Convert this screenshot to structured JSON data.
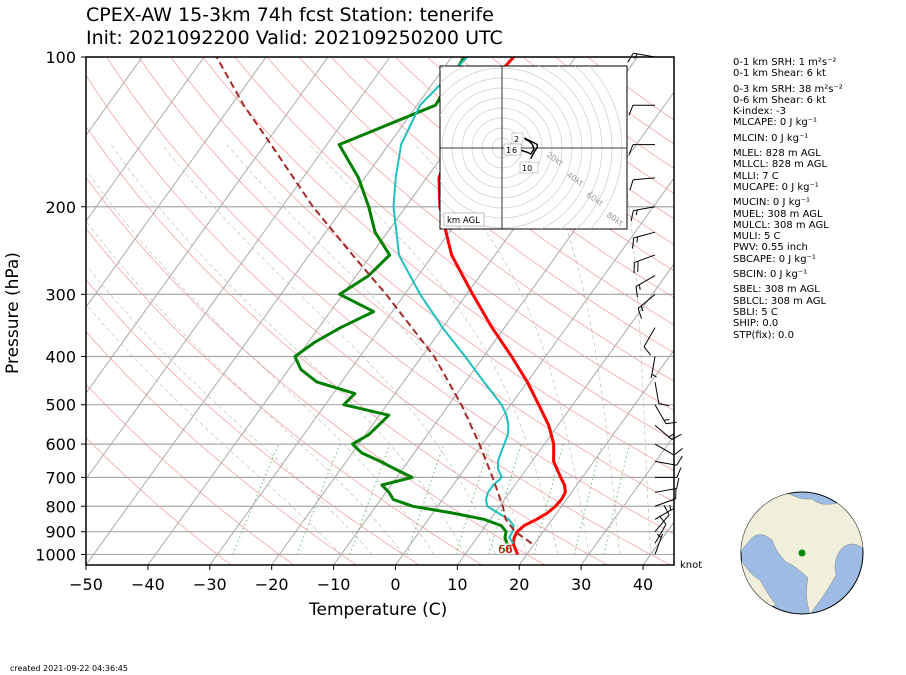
{
  "title": {
    "line1": "CPEX-AW 15-3km  74h fcst  Station: tenerife",
    "line2": "Init: 2021092200  Valid: 202109250200 UTC"
  },
  "footer": {
    "created": "created 2021-09-22 04:36:45",
    "wind_unit": "knot"
  },
  "stats": [
    "0-1 km SRH: 1 m²s⁻²",
    "0-1 km Shear: 6 kt",
    "",
    "0-3 km SRH: 38 m²s⁻²",
    "0-6 km Shear: 6 kt",
    "K-index: -3",
    "MLCAPE: 0 J kg⁻¹",
    "",
    "MLCIN: 0 J kg⁻¹",
    "",
    "MLEL: 828 m AGL",
    "MLLCL: 828 m AGL",
    "MLLI: 7 C",
    "MUCAPE: 0 J kg⁻¹",
    "",
    "MUCIN: 0 J kg⁻¹",
    "MUEL: 308 m AGL",
    "MULCL: 308 m AGL",
    "MULI: 5 C",
    "PWV: 0.55 inch",
    "SBCAPE: 0 J kg⁻¹",
    "",
    "SBCIN: 0 J kg⁻¹",
    "",
    "SBEL: 308 m AGL",
    "SBLCL: 308 m AGL",
    "SBLI: 5 C",
    "SHIP: 0.0",
    "STP(fix): 0.0"
  ],
  "hodograph": {
    "legend": "km AGL",
    "rings": [
      "20kt",
      "40kt",
      "60kt",
      "80kt"
    ],
    "height_labels": [
      "2",
      "1",
      "6",
      "10"
    ]
  },
  "chart_data": {
    "type": "line",
    "xlabel": "Temperature (C)",
    "ylabel": "Pressure (hPa)",
    "xlim": [
      -50,
      45
    ],
    "ylim": [
      1050,
      100
    ],
    "y_scale": "log",
    "x_ticks": [
      -50,
      -40,
      -30,
      -20,
      -10,
      0,
      10,
      20,
      30,
      40
    ],
    "y_ticks": [
      100,
      200,
      300,
      400,
      500,
      600,
      700,
      800,
      900,
      1000
    ],
    "surface_labels": {
      "dewpoint": "56",
      "temperature": "60"
    },
    "colors": {
      "temperature": "#ff0000",
      "dewpoint": "#008000",
      "wetbulb": "#1fbfbf",
      "parcel": "#a52a2a"
    },
    "series": [
      {
        "key": "temperature",
        "pressure": [
          1000,
          950,
          925,
          900,
          875,
          850,
          825,
          800,
          775,
          750,
          725,
          700,
          650,
          600,
          550,
          500,
          450,
          400,
          350,
          300,
          250,
          200,
          175,
          150,
          125,
          100
        ],
        "values": [
          18.5,
          16.5,
          16.0,
          15.8,
          16.2,
          17.5,
          18.5,
          19.0,
          19.2,
          19.0,
          18.0,
          16.5,
          13.5,
          11.5,
          8.5,
          4.5,
          0.0,
          -5.5,
          -12.0,
          -19.0,
          -27.0,
          -34.5,
          -38.0,
          -40.0,
          -41.5,
          -40.0
        ]
      },
      {
        "key": "dewpoint",
        "pressure": [
          950,
          925,
          900,
          875,
          850,
          825,
          800,
          775,
          750,
          725,
          700,
          675,
          650,
          625,
          600,
          575,
          550,
          525,
          500,
          475,
          450,
          425,
          400,
          375,
          350,
          325,
          300,
          275,
          250,
          225,
          200,
          175,
          150,
          125,
          100
        ],
        "values": [
          15.5,
          14.5,
          14.0,
          12.5,
          9.0,
          3.0,
          -4.0,
          -8.0,
          -9.5,
          -11.5,
          -7.5,
          -11.0,
          -14.5,
          -18.5,
          -21.0,
          -19.5,
          -19.0,
          -18.5,
          -27.0,
          -26.5,
          -34.0,
          -38.0,
          -40.5,
          -39.0,
          -36.5,
          -33.0,
          -40.5,
          -38.0,
          -37.0,
          -42.0,
          -46.0,
          -51.0,
          -58.0,
          -47.0,
          -48.0
        ]
      },
      {
        "key": "wetbulb",
        "pressure": [
          950,
          925,
          900,
          875,
          850,
          825,
          800,
          775,
          750,
          725,
          700,
          675,
          650,
          625,
          600,
          575,
          550,
          525,
          500,
          450,
          400,
          350,
          300,
          250,
          200,
          175,
          150,
          125,
          100
        ],
        "values": [
          16.5,
          15.2,
          15.0,
          14.5,
          13.0,
          10.5,
          8.0,
          7.0,
          6.5,
          6.5,
          7.0,
          5.5,
          4.5,
          4.0,
          3.5,
          3.0,
          2.0,
          0.5,
          -1.5,
          -7.0,
          -13.0,
          -20.0,
          -27.5,
          -35.5,
          -42.0,
          -45.0,
          -48.0,
          -49.5,
          -47.5
        ]
      },
      {
        "key": "parcel",
        "dashed": true,
        "pressure": [
          950,
          925,
          900,
          875,
          850,
          825,
          800,
          700,
          600,
          500,
          400,
          300,
          250,
          200,
          150,
          125,
          100
        ],
        "values": [
          19.5,
          17.5,
          15.5,
          14.0,
          12.5,
          11.5,
          10.5,
          5.5,
          -0.5,
          -8.0,
          -18.0,
          -33.0,
          -43.0,
          -55.0,
          -69.0,
          -78.0,
          -88.0
        ]
      }
    ],
    "wind_barbs": [
      {
        "p": 1000,
        "speed_kt": 5,
        "dir_deg": 20
      },
      {
        "p": 950,
        "speed_kt": 10,
        "dir_deg": 30
      },
      {
        "p": 900,
        "speed_kt": 10,
        "dir_deg": 40
      },
      {
        "p": 850,
        "speed_kt": 5,
        "dir_deg": 60
      },
      {
        "p": 800,
        "speed_kt": 10,
        "dir_deg": 70
      },
      {
        "p": 750,
        "speed_kt": 10,
        "dir_deg": 80
      },
      {
        "p": 700,
        "speed_kt": 10,
        "dir_deg": 90
      },
      {
        "p": 650,
        "speed_kt": 10,
        "dir_deg": 100
      },
      {
        "p": 600,
        "speed_kt": 10,
        "dir_deg": 120
      },
      {
        "p": 550,
        "speed_kt": 15,
        "dir_deg": 130
      },
      {
        "p": 500,
        "speed_kt": 15,
        "dir_deg": 150
      },
      {
        "p": 450,
        "speed_kt": 10,
        "dir_deg": 170
      },
      {
        "p": 400,
        "speed_kt": 5,
        "dir_deg": 190
      },
      {
        "p": 350,
        "speed_kt": 10,
        "dir_deg": 210
      },
      {
        "p": 300,
        "speed_kt": 15,
        "dir_deg": 230
      },
      {
        "p": 275,
        "speed_kt": 15,
        "dir_deg": 240
      },
      {
        "p": 250,
        "speed_kt": 20,
        "dir_deg": 250
      },
      {
        "p": 225,
        "speed_kt": 15,
        "dir_deg": 255
      },
      {
        "p": 200,
        "speed_kt": 15,
        "dir_deg": 260
      },
      {
        "p": 175,
        "speed_kt": 10,
        "dir_deg": 265
      },
      {
        "p": 150,
        "speed_kt": 10,
        "dir_deg": 270
      },
      {
        "p": 125,
        "speed_kt": 10,
        "dir_deg": 270
      },
      {
        "p": 100,
        "speed_kt": 15,
        "dir_deg": 280
      }
    ],
    "hodograph_trace": {
      "u_kt": [
        0,
        3,
        6,
        8,
        10,
        9,
        7,
        5,
        4,
        8,
        10,
        12,
        12,
        10,
        8
      ],
      "v_kt": [
        -2,
        -3,
        -4,
        -5,
        -2,
        1,
        3,
        4,
        5,
        3,
        2,
        1,
        -1,
        -4,
        -8
      ]
    },
    "globe_marker": {
      "lat": 28.3,
      "lon": -16.5
    }
  }
}
